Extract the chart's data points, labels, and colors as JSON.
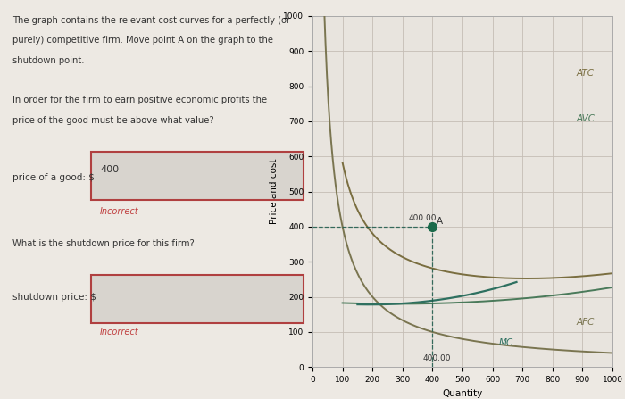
{
  "xlabel": "Quantity",
  "ylabel": "Price and cost",
  "xlim": [
    0,
    1000
  ],
  "ylim": [
    0,
    1000
  ],
  "xticks": [
    0,
    100,
    200,
    300,
    400,
    500,
    600,
    700,
    800,
    900,
    1000
  ],
  "yticks": [
    0,
    100,
    200,
    300,
    400,
    500,
    600,
    700,
    800,
    900,
    1000
  ],
  "bg_color": "#ede9e3",
  "chart_bg": "#e8e4de",
  "grid_color": "#c5bdb5",
  "mc_color": "#2e7060",
  "atc_color": "#7a6e40",
  "avc_color": "#4a7a5a",
  "afc_color": "#7a7550",
  "point_color": "#1a6a4a",
  "hline_color": "#1a5a4a",
  "vline_color": "#1a5a4a",
  "annotation_400_left": "400.00",
  "annotation_400_bottom": "400.00",
  "point_A_x": 400,
  "point_A_y": 400,
  "label_MC": "MC",
  "label_ATC": "ATC",
  "label_AVC": "AVC",
  "label_AFC": "AFC",
  "left_text1": "The graph contains the relevant cost curves for a perfectly (or",
  "left_text2": "purely) competitive firm. Move point A on the graph to the",
  "left_text3": "shutdown point.",
  "left_text4": "In order for the firm to earn positive economic profits the",
  "left_text5": "price of the good must be above what value?",
  "left_label1": "price of a good: $",
  "left_input1": "400",
  "left_incorrect1": "Incorrect",
  "left_question2": "What is the shutdown price for this firm?",
  "left_label2": "shutdown price: $",
  "left_incorrect2": "Incorrect",
  "input_box_color": "#d8d4ce",
  "input_border_color": "#b04040",
  "incorrect_color": "#c04040",
  "text_color": "#333333"
}
